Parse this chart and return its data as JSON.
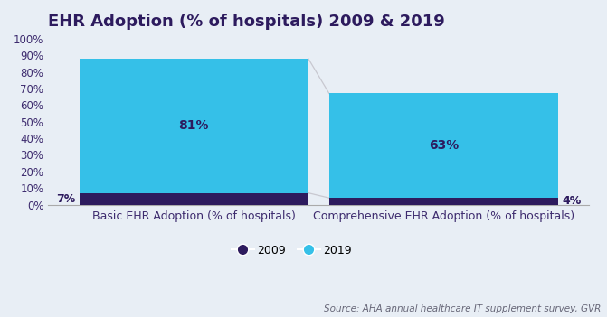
{
  "title": "EHR Adoption (% of hospitals) 2009 & 2019",
  "categories": [
    "Basic EHR Adoption (% of hospitals)",
    "Comprehensive EHR Adoption (% of hospitals)"
  ],
  "values_2009": [
    7,
    4
  ],
  "values_2019": [
    81,
    63
  ],
  "color_2009": "#2d1b5e",
  "color_2019": "#35c0e8",
  "connector_color": "#c8c8d0",
  "bg_color": "#e8eef5",
  "ylim": [
    0,
    100
  ],
  "yticks": [
    0,
    10,
    20,
    30,
    40,
    50,
    60,
    70,
    80,
    90,
    100
  ],
  "ytick_labels": [
    "0%",
    "10%",
    "20%",
    "30%",
    "40%",
    "50%",
    "60%",
    "70%",
    "80%",
    "90%",
    "100%"
  ],
  "label_2009": "2009",
  "label_2019": "2019",
  "source_text": "Source: AHA annual healthcare IT supplement survey, GVR",
  "bar_width": 0.55,
  "title_fontsize": 13,
  "label_fontsize": 9,
  "tick_fontsize": 8.5,
  "source_fontsize": 7.5,
  "legend_fontsize": 9,
  "tick_color": "#3d2b6e",
  "title_color": "#2d1b5e",
  "annotation_color_inside": "#2d1b5e",
  "annotation_color_outside": "#2d1b5e"
}
